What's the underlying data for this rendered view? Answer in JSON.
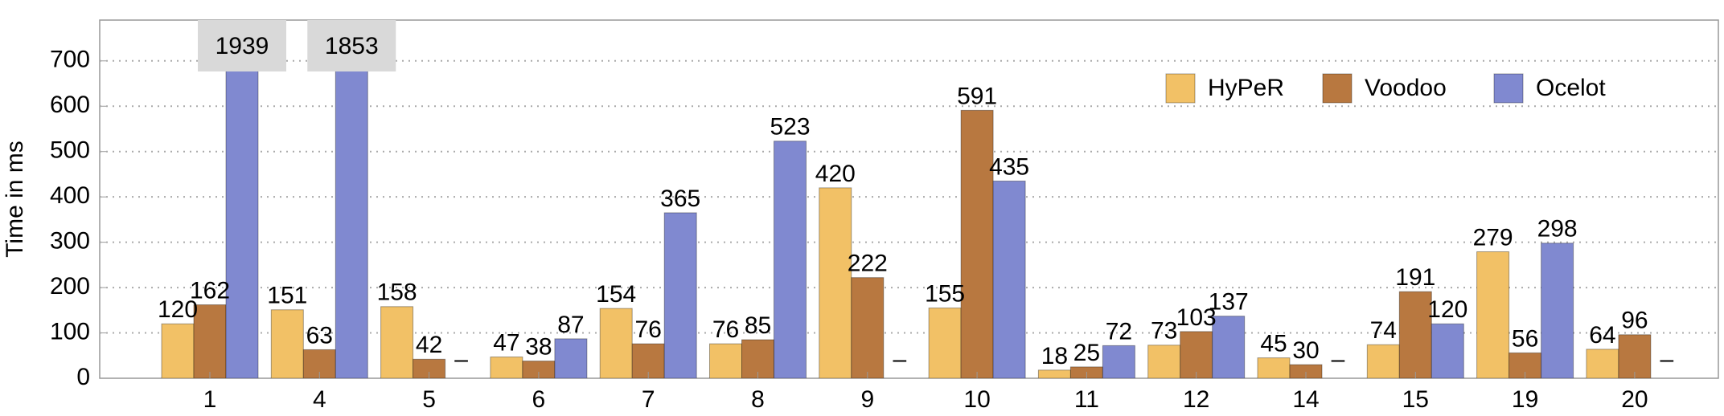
{
  "chart_data": {
    "type": "bar",
    "y_label": "Time in ms",
    "categories": [
      "1",
      "4",
      "5",
      "6",
      "7",
      "8",
      "9",
      "10",
      "11",
      "12",
      "14",
      "15",
      "19",
      "20"
    ],
    "series": [
      {
        "name": "HyPeR",
        "color": "#f2c166",
        "values": [
          120,
          151,
          158,
          47,
          154,
          76,
          420,
          155,
          18,
          73,
          45,
          74,
          279,
          64
        ]
      },
      {
        "name": "Voodoo",
        "color": "#b87840",
        "values": [
          162,
          63,
          42,
          38,
          76,
          85,
          222,
          591,
          25,
          103,
          30,
          191,
          56,
          96
        ]
      },
      {
        "name": "Ocelot",
        "color": "#8089d0",
        "values": [
          1939,
          1853,
          null,
          87,
          365,
          523,
          null,
          435,
          72,
          137,
          null,
          120,
          298,
          null
        ],
        "value_labels": [
          "1939",
          "1853",
          "–",
          "87",
          "365",
          "523",
          "–",
          "435",
          "72",
          "137",
          "–",
          "120",
          "298",
          "–"
        ]
      }
    ],
    "ylim": [
      0,
      790
    ],
    "yticks": [
      0,
      100,
      200,
      300,
      400,
      500,
      600,
      700
    ],
    "grid": true,
    "legend": "upper right"
  }
}
